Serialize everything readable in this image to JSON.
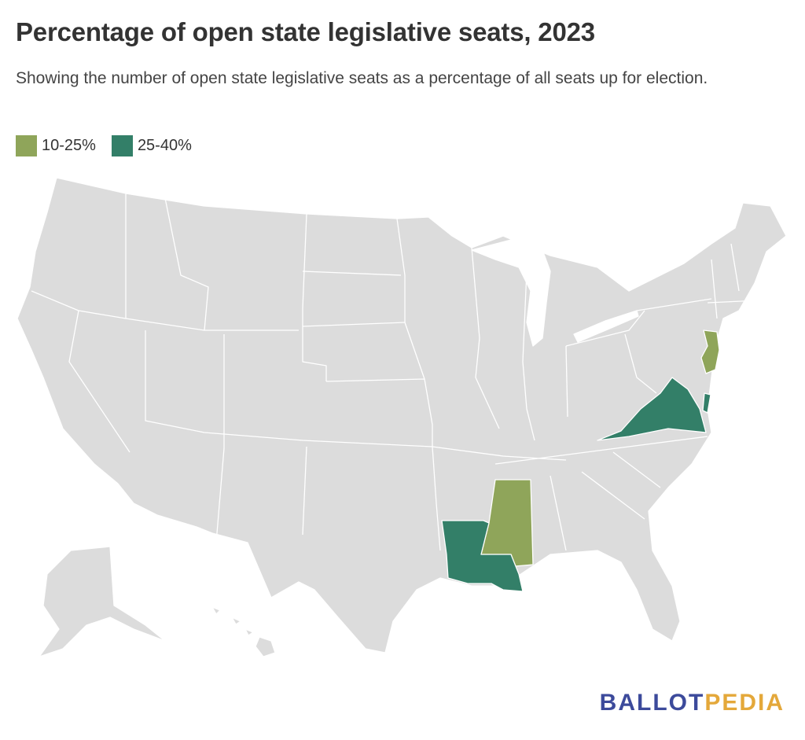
{
  "title": "Percentage of open state legislative seats, 2023",
  "subtitle": "Showing the number of open state legislative seats as a percentage of all seats up for election.",
  "legend": [
    {
      "label": "10-25%",
      "color": "#8fa55a"
    },
    {
      "label": "25-40%",
      "color": "#337f68"
    }
  ],
  "map": {
    "default_color": "#dcdcdc",
    "states_10_25": [
      "New Jersey",
      "Mississippi"
    ],
    "states_25_40": [
      "Virginia",
      "Louisiana"
    ]
  },
  "brand": {
    "part1": "BALLOT",
    "part2": "PEDIA"
  }
}
